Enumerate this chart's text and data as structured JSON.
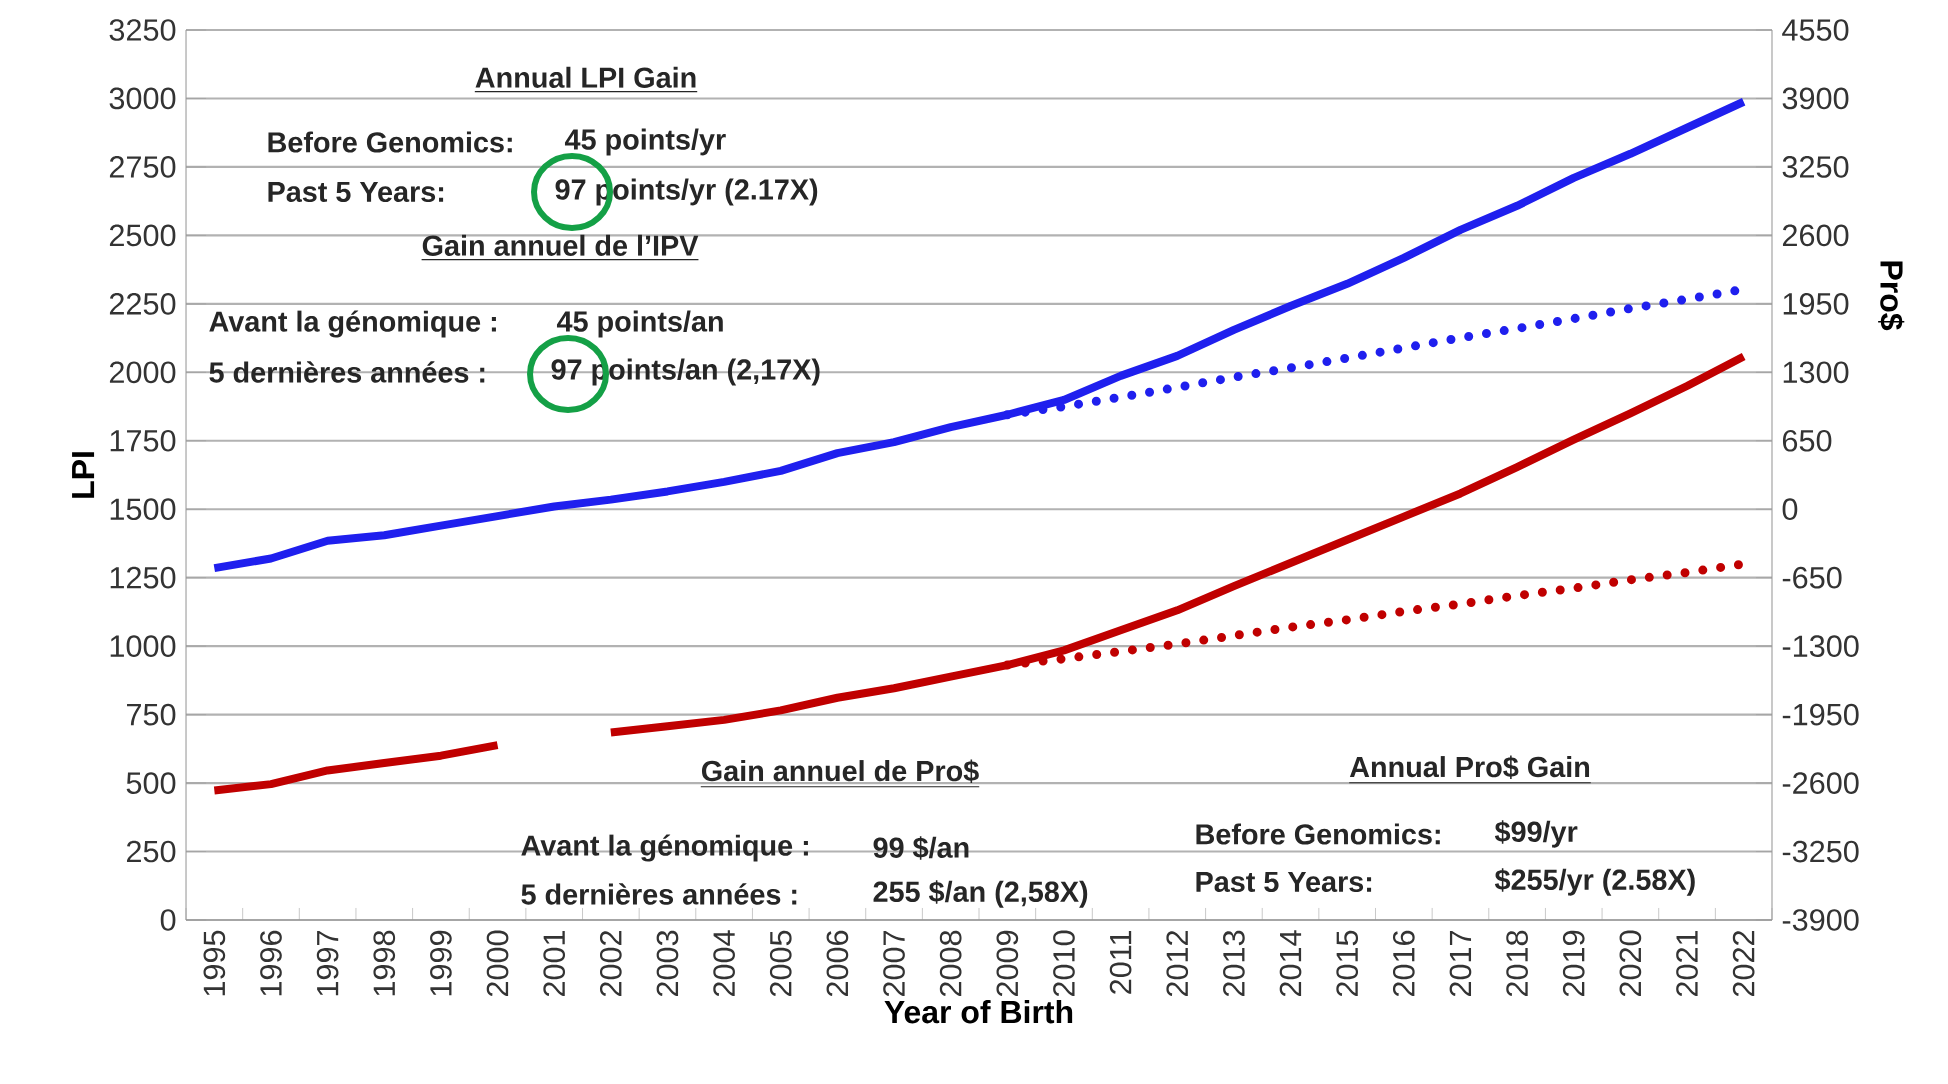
{
  "chart_data": {
    "type": "line",
    "xlabel": "Year of Birth",
    "ylabel": "LPI",
    "y2label": "Pro$",
    "categories": [
      "1995",
      "1996",
      "1997",
      "1998",
      "1999",
      "2000",
      "2001",
      "2002",
      "2003",
      "2004",
      "2005",
      "2006",
      "2007",
      "2008",
      "2009",
      "2010",
      "2011",
      "2012",
      "2013",
      "2014",
      "2015",
      "2016",
      "2017",
      "2018",
      "2019",
      "2020",
      "2021",
      "2022"
    ],
    "ylim": [
      0,
      3250
    ],
    "yticks": [
      0,
      250,
      500,
      750,
      1000,
      1250,
      1500,
      1750,
      2000,
      2250,
      2500,
      2750,
      3000,
      3250
    ],
    "y2lim": [
      -3900,
      4550
    ],
    "y2ticks": [
      -3900,
      -3250,
      -2600,
      -1950,
      -1300,
      -650,
      0,
      650,
      1300,
      1950,
      2600,
      3250,
      3900,
      4550
    ],
    "grid": "y",
    "marker": "none",
    "series": [
      {
        "color": "#1f1fee",
        "axis": "y",
        "line_style": "solid",
        "values": [
          1285,
          1320,
          1385,
          1405,
          1440,
          1475,
          1510,
          1535,
          1565,
          1600,
          1640,
          1705,
          1745,
          1800,
          1845,
          1899,
          1987,
          2060,
          2155,
          2242,
          2323,
          2418,
          2520,
          2608,
          2710,
          2798,
          2893,
          2988
        ]
      },
      {
        "color": "#1f1fee",
        "axis": "y",
        "line_style": "dotted",
        "values": [
          null,
          null,
          null,
          null,
          null,
          null,
          null,
          null,
          null,
          null,
          null,
          null,
          null,
          null,
          1845,
          1875,
          1909,
          1945,
          1982,
          2016,
          2052,
          2089,
          2126,
          2160,
          2196,
          2233,
          2267,
          2303
        ]
      },
      {
        "color": "#c00000",
        "axis": "y2",
        "line_style": "solid",
        "values": [
          -2670,
          -2610,
          -2480,
          -2410,
          -2340,
          -2240,
          null,
          -2120,
          -2060,
          -2000,
          -1910,
          -1790,
          -1700,
          -1590,
          -1480,
          -1340,
          -1150,
          -960,
          -730,
          -510,
          -290,
          -70,
          150,
          400,
          660,
          910,
          1170,
          1450
        ]
      },
      {
        "color": "#c00000",
        "axis": "y2",
        "line_style": "dotted",
        "values": [
          null,
          null,
          null,
          null,
          null,
          null,
          null,
          null,
          null,
          null,
          null,
          null,
          null,
          null,
          -1480,
          -1420,
          -1350,
          -1280,
          -1200,
          -1120,
          -1050,
          -970,
          -900,
          -820,
          -750,
          -670,
          -600,
          -520
        ]
      }
    ],
    "annotations": [
      "Annual LPI Gain",
      "Before Genomics:",
      "45 points/yr",
      "Past 5 Years:",
      "97 points/yr (2.17X)",
      "Gain annuel de l’IPV",
      "Avant la génomique :",
      "45 points/an",
      "5 dernières années :",
      "97 points/an (2,17X)",
      "Gain annuel de Pro$",
      "Avant la génomique :",
      "99 $/an",
      "5 dernières années :",
      "255 $/an (2,58X)",
      "Annual Pro$ Gain",
      "Before Genomics:",
      "$99/yr",
      "Past 5 Years:",
      "$255/yr (2.58X)"
    ]
  }
}
